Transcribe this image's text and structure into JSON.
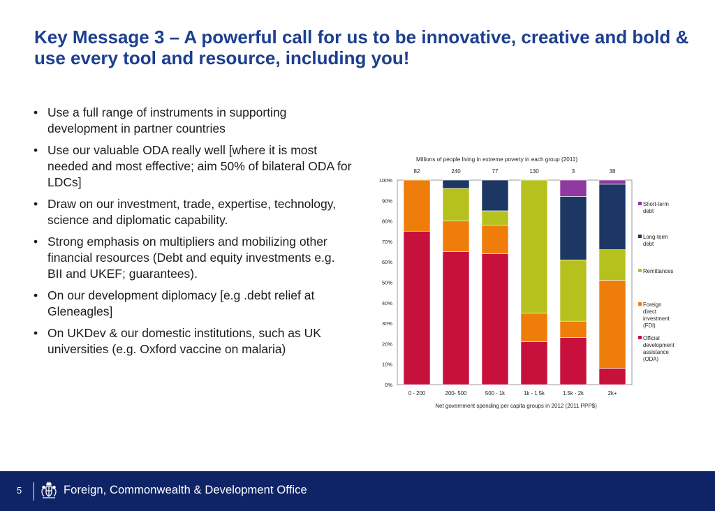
{
  "slide": {
    "title": "Key Message 3 – A powerful call for us to be innovative, creative and bold & use every tool and resource, including you!",
    "bullet_glyph": "•",
    "bullets": [
      "Use a full range of instruments in supporting development in partner countries",
      "Use our valuable ODA really well [where it is most needed and most effective; aim 50% of bilateral ODA for LDCs]",
      "Draw on our investment, trade, expertise, technology, science and diplomatic capability.",
      "Strong emphasis on multipliers and mobilizing other financial resources (Debt and equity investments e.g. BII and UKEF; guarantees).",
      "On our development diplomacy [e.g .debt relief at Gleneagles]",
      "On UKDev & our domestic institutions, such as UK universities (e.g. Oxford vaccine on malaria)"
    ]
  },
  "chart_data": {
    "type": "bar",
    "stacked": true,
    "title": "Millions of people living in extreme poverty in each group (2011)",
    "top_labels": [
      "82",
      "240",
      "77",
      "130",
      "3",
      "38"
    ],
    "categories": [
      "0 - 200",
      "200- 500",
      "500 - 1k",
      "1k - 1.5k",
      "1.5k - 2k",
      "2k+"
    ],
    "xlabel": "Net government spending per capita groups in 2012 (2011 PPP$)",
    "ylabel": "",
    "ylim": [
      0,
      100
    ],
    "yticks": [
      "0%",
      "10%",
      "20%",
      "30%",
      "40%",
      "50%",
      "60%",
      "70%",
      "80%",
      "90%",
      "100%"
    ],
    "legend_position": "right",
    "series": [
      {
        "name": "Official development assistance (ODA)",
        "legend_lines": [
          "Official",
          "development",
          "assistance",
          "(ODA)"
        ],
        "color": "#c8103c",
        "values": [
          75,
          65,
          64,
          21,
          23,
          8
        ]
      },
      {
        "name": "Foreign direct investment (FDI)",
        "legend_lines": [
          "Foreign",
          "direct",
          "investment",
          "(FDI)"
        ],
        "color": "#ee7d0a",
        "values": [
          25,
          15,
          14,
          14,
          8,
          43
        ]
      },
      {
        "name": "Remittances",
        "legend_lines": [
          "Remittances"
        ],
        "color": "#b7c11e",
        "values": [
          0,
          16,
          7,
          65,
          30,
          15
        ]
      },
      {
        "name": "Long-term debt",
        "legend_lines": [
          "Long-term",
          "debt"
        ],
        "color": "#1c3764",
        "values": [
          0,
          4,
          15,
          0,
          31,
          32
        ]
      },
      {
        "name": "Short-term debt",
        "legend_lines": [
          "Short-term",
          "debt"
        ],
        "color": "#8e3aa0",
        "values": [
          0,
          0,
          0,
          0,
          8,
          2
        ]
      }
    ]
  },
  "footer": {
    "page_number": "5",
    "organisation": "Foreign, Commonwealth & Development Office",
    "crest_icon": "royal-coat-of-arms-icon"
  }
}
